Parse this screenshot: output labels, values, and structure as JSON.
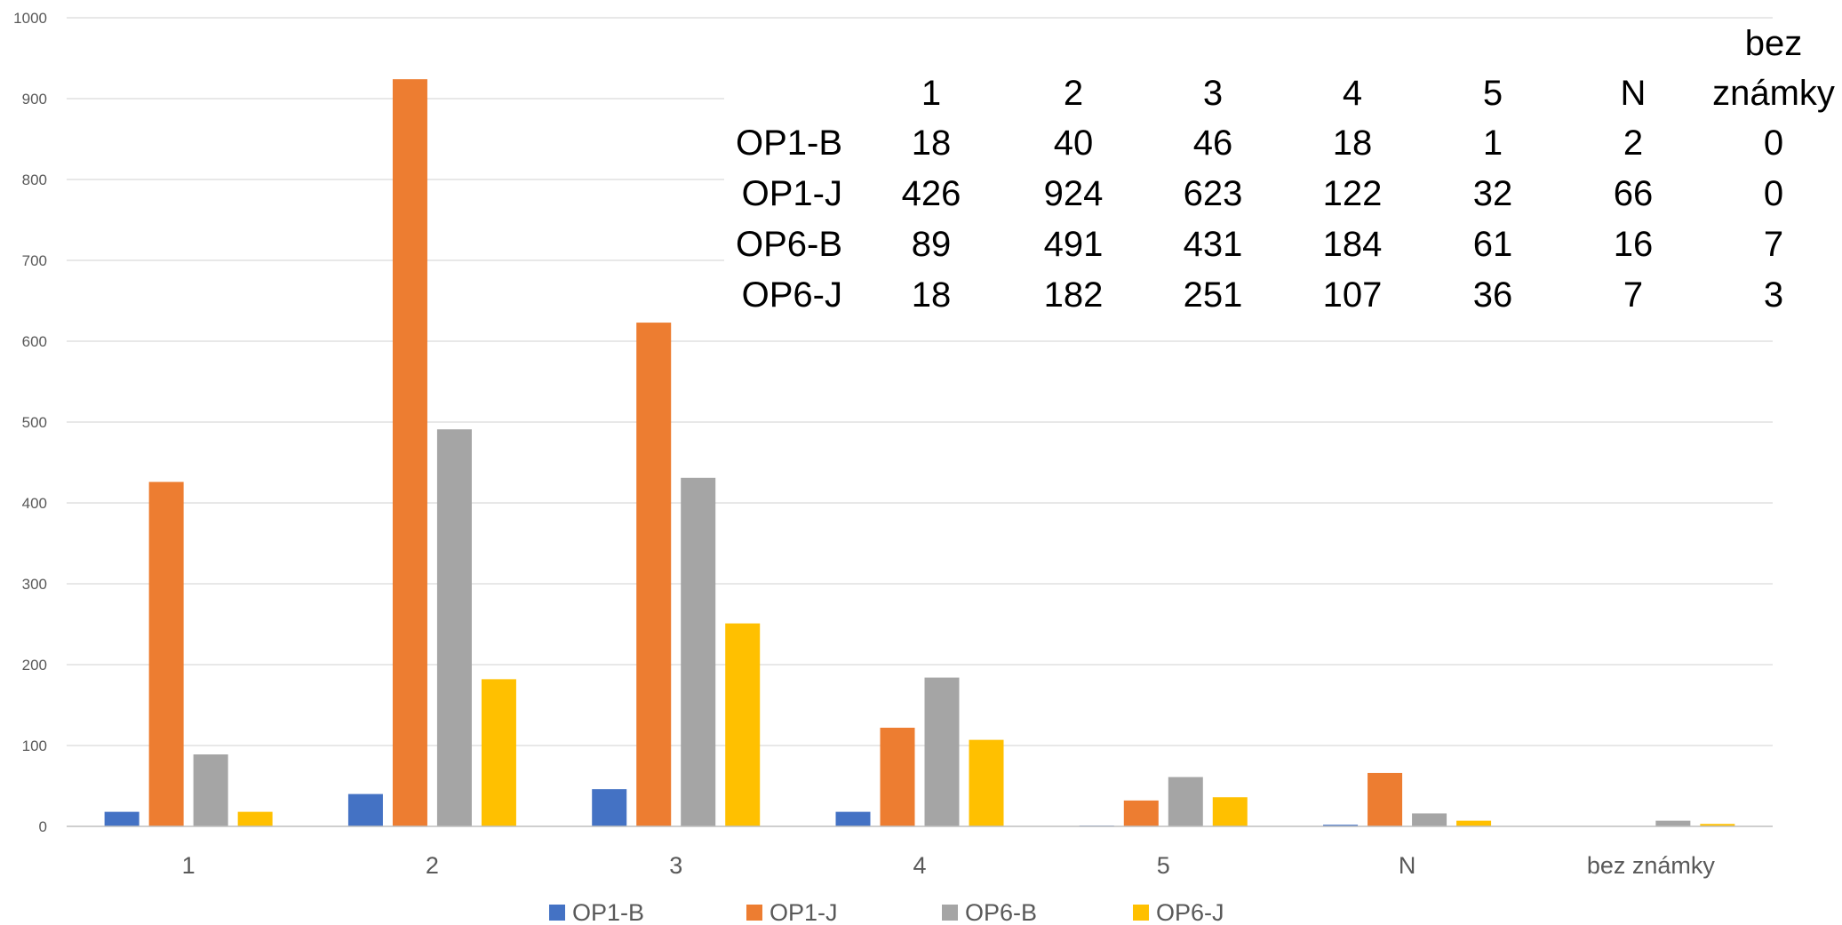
{
  "chart_data": {
    "type": "bar",
    "title": "",
    "xlabel": "",
    "ylabel": "",
    "ylim": [
      0,
      1000
    ],
    "yticks": [
      0,
      100,
      200,
      300,
      400,
      500,
      600,
      700,
      800,
      900,
      1000
    ],
    "categories": [
      "1",
      "2",
      "3",
      "4",
      "5",
      "N",
      "bez známky"
    ],
    "grid": true,
    "legend_position": "bottom",
    "series": [
      {
        "name": "OP1-B",
        "color": "#4472C4",
        "values": [
          18,
          40,
          46,
          18,
          1,
          2,
          0
        ]
      },
      {
        "name": "OP1-J",
        "color": "#ED7D31",
        "values": [
          426,
          924,
          623,
          122,
          32,
          66,
          0
        ]
      },
      {
        "name": "OP6-B",
        "color": "#A5A5A5",
        "values": [
          89,
          491,
          431,
          184,
          61,
          16,
          7
        ]
      },
      {
        "name": "OP6-J",
        "color": "#FFC000",
        "values": [
          18,
          182,
          251,
          107,
          36,
          7,
          3
        ]
      }
    ],
    "table": {
      "header_lines": [
        [
          "1"
        ],
        [
          "2"
        ],
        [
          "3"
        ],
        [
          "4"
        ],
        [
          "5"
        ],
        [
          "N"
        ],
        [
          "bez",
          "známky"
        ]
      ],
      "rows": [
        {
          "label": "OP1-B",
          "cells": [
            "18",
            "40",
            "46",
            "18",
            "1",
            "2",
            "0"
          ]
        },
        {
          "label": "OP1-J",
          "cells": [
            "426",
            "924",
            "623",
            "122",
            "32",
            "66",
            "0"
          ]
        },
        {
          "label": "OP6-B",
          "cells": [
            "89",
            "491",
            "431",
            "184",
            "61",
            "16",
            "7"
          ]
        },
        {
          "label": "OP6-J",
          "cells": [
            "18",
            "182",
            "251",
            "107",
            "36",
            "7",
            "3"
          ]
        }
      ]
    }
  }
}
